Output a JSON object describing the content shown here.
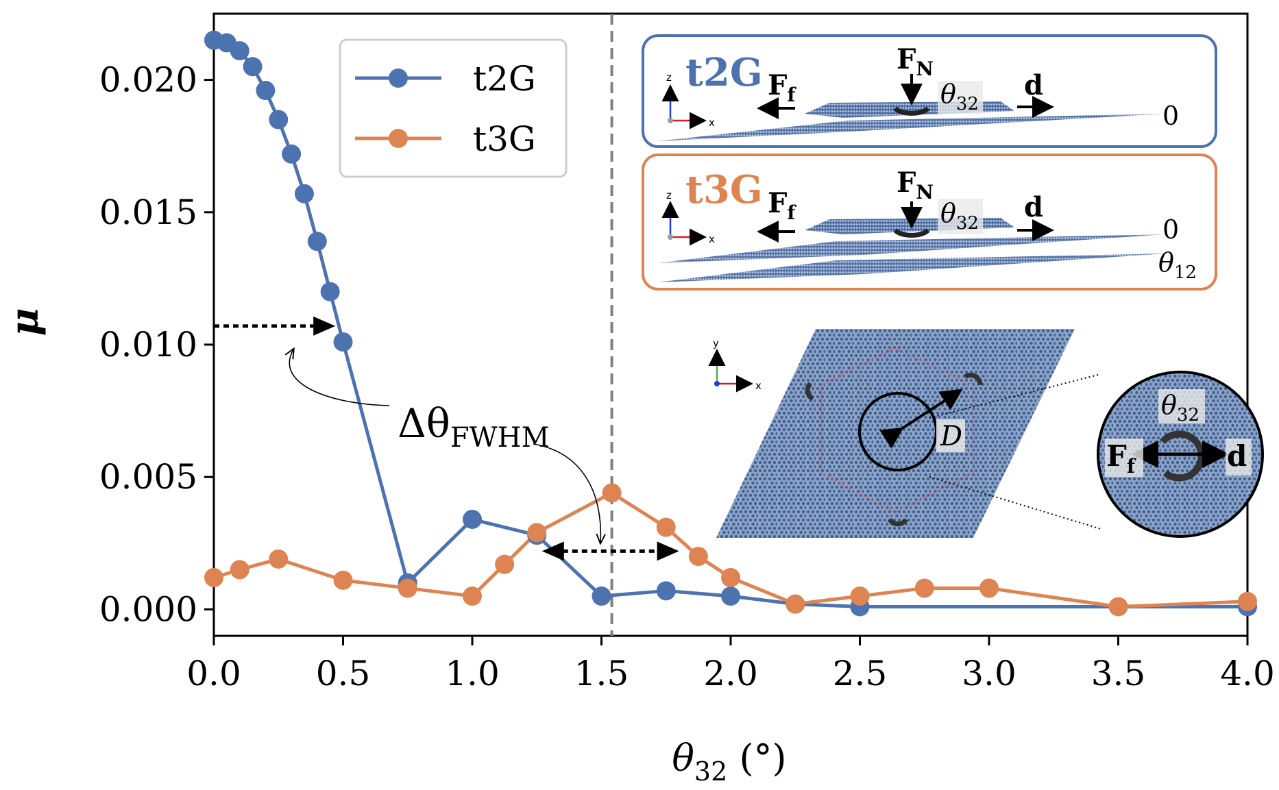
{
  "chart_data": {
    "type": "line",
    "xlabel_main": "θ",
    "xlabel_sub": "32",
    "xlabel_unit": " (°)",
    "ylabel": "μ",
    "xlim": [
      0,
      4
    ],
    "ylim": [
      -0.001,
      0.0225
    ],
    "xticks": [
      0,
      0.5,
      1,
      1.5,
      2,
      2.5,
      3,
      3.5,
      4
    ],
    "xtick_labels": [
      "0.0",
      "0.5",
      "1.0",
      "1.5",
      "2.0",
      "2.5",
      "3.0",
      "3.5",
      "4.0"
    ],
    "yticks": [
      0,
      0.005,
      0.01,
      0.015,
      0.02
    ],
    "ytick_labels": [
      "0.000",
      "0.005",
      "0.010",
      "0.015",
      "0.020"
    ],
    "grid": false,
    "legend_position": "top-left",
    "vertical_reference_line": {
      "x": 1.54,
      "style": "dashed",
      "color": "#808080"
    },
    "series": [
      {
        "name": "t2G",
        "color": "#4C72B0",
        "x": [
          0,
          0.05,
          0.1,
          0.15,
          0.2,
          0.25,
          0.3,
          0.35,
          0.4,
          0.45,
          0.5,
          0.75,
          1.0,
          1.25,
          1.5,
          1.75,
          2.0,
          2.25,
          2.5,
          4.0
        ],
        "y": [
          0.0215,
          0.0214,
          0.0211,
          0.0205,
          0.0196,
          0.0185,
          0.0172,
          0.0157,
          0.0139,
          0.012,
          0.0101,
          0.001,
          0.0034,
          0.0028,
          0.0005,
          0.0007,
          0.0005,
          0.0002,
          0.0001,
          0.0001
        ]
      },
      {
        "name": "t3G",
        "color": "#DD8452",
        "x": [
          0,
          0.1,
          0.25,
          0.5,
          0.75,
          1.0,
          1.125,
          1.25,
          1.54,
          1.75,
          1.875,
          2.0,
          2.25,
          2.5,
          2.75,
          3.0,
          3.5,
          4.0
        ],
        "y": [
          0.0012,
          0.0015,
          0.0019,
          0.0011,
          0.0008,
          0.0005,
          0.0017,
          0.0029,
          0.0044,
          0.0031,
          0.002,
          0.0012,
          0.0002,
          0.0005,
          0.0008,
          0.0008,
          0.0001,
          0.0003
        ]
      }
    ],
    "annotations": {
      "fwhm_label_main": "Δθ",
      "fwhm_label_sub": "FWHM",
      "fwhm_arrow_1": {
        "x_from": 0,
        "x_to": 0.47,
        "y": 0.0107
      },
      "fwhm_arrow_2": {
        "x_from": 1.27,
        "x_to": 1.8,
        "y": 0.0022
      }
    },
    "inset_top": {
      "label": "t2G",
      "color": "#4C72B0",
      "force_normal_main": "F",
      "force_normal_sub": "N",
      "force_friction_main": "F",
      "force_friction_sub": "f",
      "displacement": "d",
      "twist_main": "θ",
      "twist_sub": "32",
      "layer_angle": "0",
      "axis_z": "z",
      "axis_x": "x"
    },
    "inset_middle": {
      "label": "t3G",
      "color": "#DD8452",
      "force_normal_main": "F",
      "force_normal_sub": "N",
      "force_friction_main": "F",
      "force_friction_sub": "f",
      "displacement": "d",
      "twist_main": "θ",
      "twist_sub": "32",
      "layer_angle_top": "0",
      "layer_angle_bottom_main": "θ",
      "layer_angle_bottom_sub": "12",
      "axis_z": "z",
      "axis_x": "x"
    },
    "inset_bottom": {
      "diameter_label": "D",
      "axis_y": "y",
      "axis_x": "x",
      "zoom_twist_main": "θ",
      "zoom_twist_sub": "32",
      "zoom_force_main": "F",
      "zoom_force_sub": "f",
      "zoom_displacement": "d",
      "lattice_color": "#5878A6"
    }
  }
}
